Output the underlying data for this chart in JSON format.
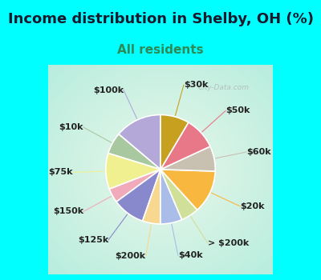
{
  "title": "Income distribution in Shelby, OH (%)",
  "subtitle": "All residents",
  "title_fontsize": 13,
  "subtitle_fontsize": 11,
  "title_color": "#1a1a2e",
  "subtitle_color": "#2e8b57",
  "background_color": "#00FFFF",
  "labels": [
    "$100k",
    "$10k",
    "$75k",
    "$150k",
    "$125k",
    "$200k",
    "$40k",
    "> $200k",
    "$20k",
    "$60k",
    "$50k",
    "$30k"
  ],
  "values": [
    13,
    6,
    10,
    4,
    9,
    5,
    6,
    5,
    12,
    7,
    9,
    8
  ],
  "colors": [
    "#b3a8d8",
    "#a8c8a0",
    "#f0f090",
    "#f0aaba",
    "#8888cc",
    "#f8d890",
    "#aabce8",
    "#d0e098",
    "#f8b840",
    "#c8c0b0",
    "#e87888",
    "#c8a020"
  ],
  "startangle": 90,
  "wedge_linewidth": 1.2,
  "wedge_edgecolor": "white",
  "label_fontsize": 8,
  "label_distance": 1.25,
  "watermark": "City-Data.com"
}
